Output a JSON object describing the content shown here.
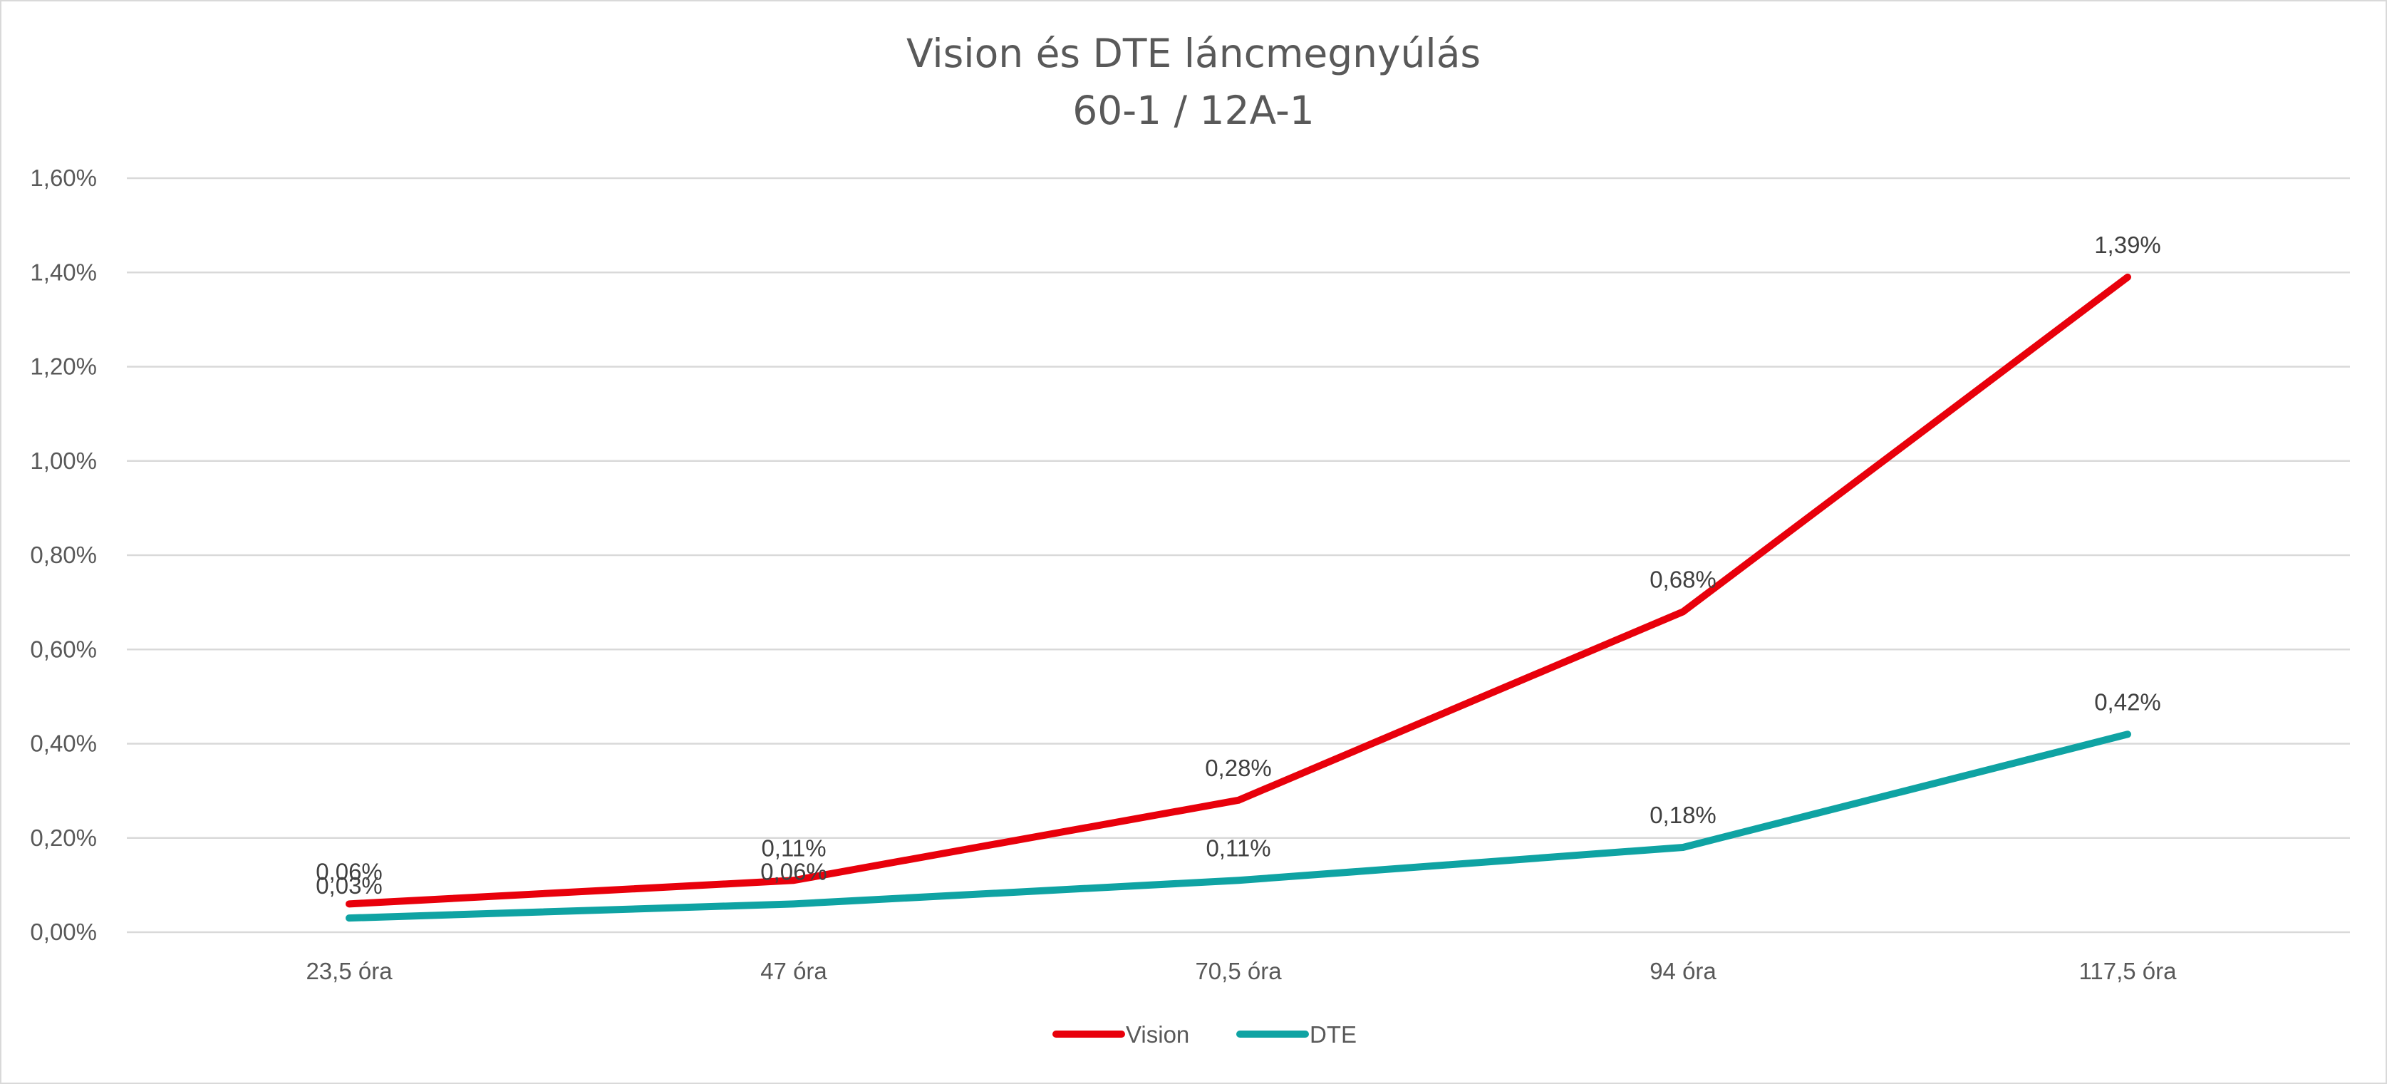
{
  "chart_data": {
    "type": "line",
    "title": "Vision és DTE láncmegnyúlás",
    "subtitle": "60-1 / 12A-1",
    "categories": [
      "23,5 óra",
      "47 óra",
      "70,5 óra",
      "94 óra",
      "117,5 óra"
    ],
    "ylim": [
      0,
      1.6
    ],
    "yticks": [
      "0,00%",
      "0,20%",
      "0,40%",
      "0,60%",
      "0,80%",
      "1,00%",
      "1,20%",
      "1,40%",
      "1,60%"
    ],
    "grid": true,
    "legend_position": "bottom",
    "series": [
      {
        "name": "Vision",
        "color": "#e8000b",
        "values": [
          0.06,
          0.11,
          0.28,
          0.68,
          1.39
        ],
        "labels": [
          "0,06%",
          "0,11%",
          "0,28%",
          "0,68%",
          "1,39%"
        ]
      },
      {
        "name": "DTE",
        "color": "#0fa3a3",
        "values": [
          0.03,
          0.06,
          0.11,
          0.18,
          0.42
        ],
        "labels": [
          "0,03%",
          "0,06%",
          "0,11%",
          "0,18%",
          "0,42%"
        ]
      }
    ]
  }
}
